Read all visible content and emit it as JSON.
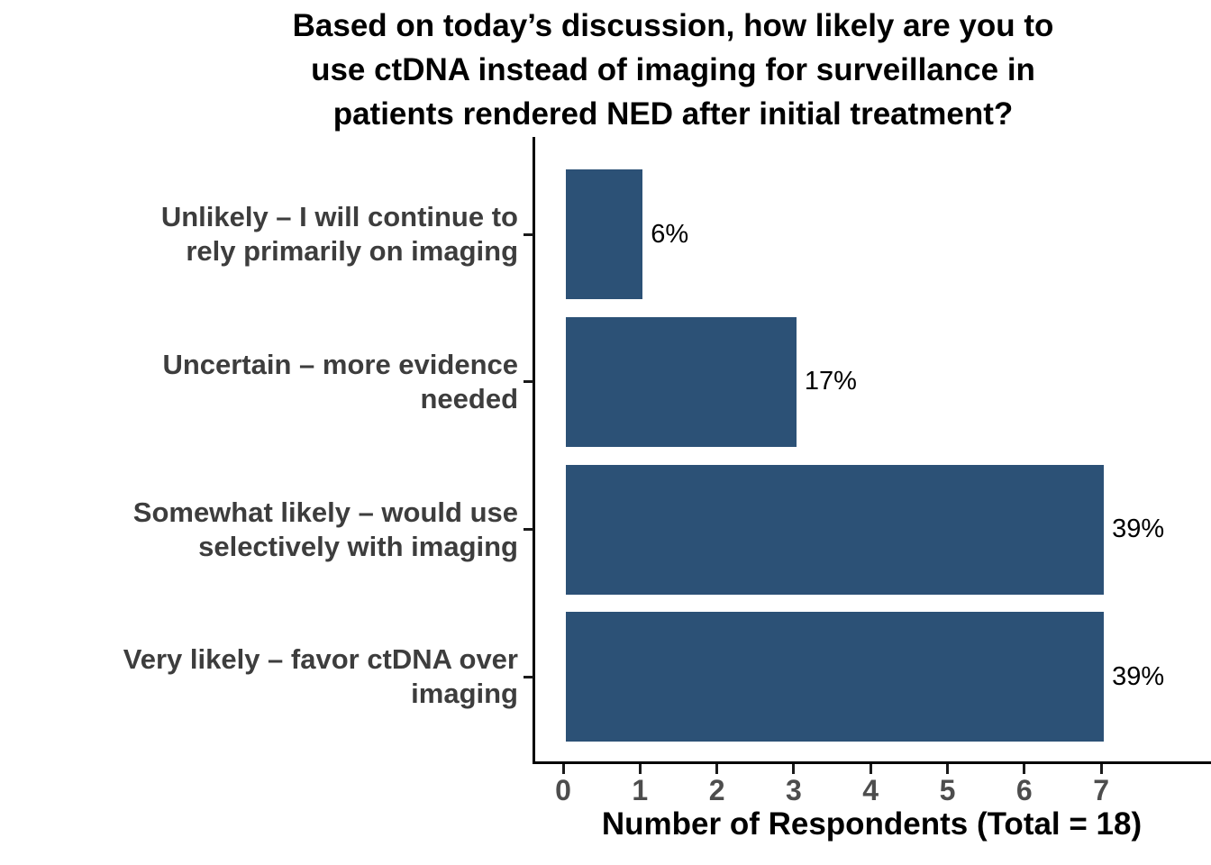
{
  "chart_data": {
    "type": "bar",
    "orientation": "horizontal",
    "title": "Based on today’s discussion, how likely are you to use ctDNA instead of imaging for surveillance in patients rendered NED after initial treatment?",
    "title_lines": [
      "Based on today’s discussion, how likely are you to",
      "use ctDNA instead of imaging for surveillance in",
      "patients rendered NED after initial treatment?"
    ],
    "categories": [
      "Unlikely – I will continue to rely primarily on imaging",
      "Uncertain – more evidence needed",
      "Somewhat likely – would use selectively with imaging",
      "Very likely – favor ctDNA over imaging"
    ],
    "category_lines": [
      [
        "Unlikely – I will continue to",
        "rely primarily on imaging"
      ],
      [
        "Uncertain – more evidence",
        "needed"
      ],
      [
        "Somewhat likely – would use",
        "selectively with imaging"
      ],
      [
        "Very likely – favor ctDNA over",
        "imaging"
      ]
    ],
    "values": [
      1,
      3,
      7,
      7
    ],
    "bar_labels": [
      "6%",
      "17%",
      "39%",
      "39%"
    ],
    "xlabel": "Number of Respondents (Total = 18)",
    "x_ticks": [
      "0",
      "1",
      "2",
      "3",
      "4",
      "5",
      "6",
      "7"
    ],
    "xlim": [
      0,
      7.9
    ],
    "total_respondents": 18,
    "bar_color": "#2C5176",
    "axis_line_color": "#000000",
    "tick_label_color": "#4d4d4d",
    "category_label_color": "#3d3d3d",
    "value_label_color": "#000000",
    "background_color": "#ffffff",
    "grid": false,
    "legend": false
  }
}
